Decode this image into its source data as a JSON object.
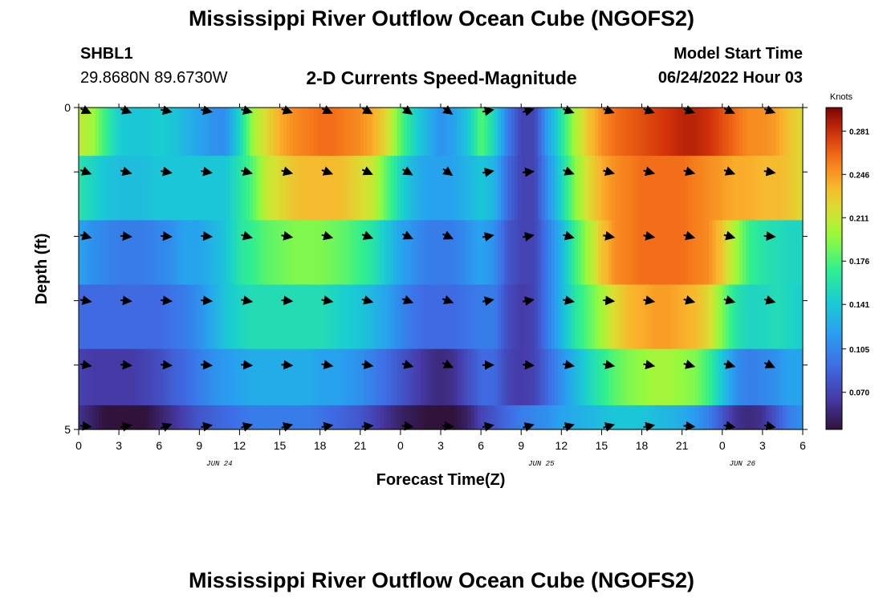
{
  "header": {
    "title": "Mississippi River Outflow Ocean Cube (NGOFS2)",
    "station_id": "SHBL1",
    "station_coords": "29.8680N  89.6730W",
    "subtitle": "2-D Currents Speed-Magnitude",
    "start_label": "Model Start Time",
    "start_value": "06/24/2022 Hour 03"
  },
  "footer": {
    "title": "Mississippi River Outflow Ocean Cube (NGOFS2)"
  },
  "chart_data": {
    "type": "heatmap",
    "title": "2-D Currents Speed-Magnitude",
    "xlabel": "Forecast Time(Z)",
    "ylabel": "Depth (ft)",
    "xlim": [
      0,
      54
    ],
    "ylim": [
      5,
      0
    ],
    "x_ticks": [
      0,
      3,
      6,
      9,
      12,
      15,
      18,
      21,
      24,
      27,
      30,
      33,
      36,
      39,
      42,
      45,
      48,
      51,
      54
    ],
    "x_tick_labels": [
      "0",
      "3",
      "6",
      "9",
      "12",
      "15",
      "18",
      "21",
      "0",
      "3",
      "6",
      "9",
      "12",
      "15",
      "18",
      "21",
      "0",
      "3",
      "6"
    ],
    "y_tick_labels": [
      {
        "value": 0,
        "label": "0"
      },
      {
        "value": 5,
        "label": "5"
      }
    ],
    "date_labels": [
      {
        "x": 10.5,
        "label": "JUN 24"
      },
      {
        "x": 34.5,
        "label": "JUN 25"
      },
      {
        "x": 49.5,
        "label": "JUN 26"
      }
    ],
    "colorbar": {
      "unit": "Knots",
      "range": [
        0.04,
        0.3
      ],
      "tick_values": [
        0.07,
        0.105,
        0.141,
        0.176,
        0.211,
        0.246,
        0.281
      ],
      "tick_labels": [
        "0.070",
        "0.105",
        "0.141",
        "0.176",
        "0.211",
        "0.246",
        "0.281"
      ],
      "colormap": "turbo"
    },
    "depth_layers": [
      0.25,
      1.25,
      2.25,
      3.25,
      4.25,
      5.0
    ],
    "speed_time_anchors": [
      0,
      1,
      2,
      3,
      4,
      5,
      6,
      7,
      8,
      9,
      10,
      11,
      12,
      13,
      14,
      15,
      16,
      17,
      18,
      19,
      20,
      21,
      22,
      23,
      24,
      25,
      26,
      27,
      28,
      29,
      30,
      31,
      32,
      33,
      34,
      35,
      36,
      37,
      38,
      39,
      40,
      41,
      42,
      43,
      44,
      45,
      46,
      47,
      48,
      49,
      50,
      51,
      52,
      53,
      54
    ],
    "speed_knots": [
      [
        0.21,
        0.2,
        0.17,
        0.145,
        0.14,
        0.14,
        0.145,
        0.14,
        0.13,
        0.12,
        0.11,
        0.11,
        0.15,
        0.2,
        0.22,
        0.24,
        0.25,
        0.255,
        0.26,
        0.26,
        0.255,
        0.25,
        0.24,
        0.22,
        0.18,
        0.15,
        0.13,
        0.11,
        0.12,
        0.14,
        0.18,
        0.15,
        0.1,
        0.07,
        0.07,
        0.12,
        0.16,
        0.2,
        0.23,
        0.25,
        0.26,
        0.265,
        0.27,
        0.275,
        0.28,
        0.285,
        0.285,
        0.28,
        0.27,
        0.26,
        0.25,
        0.25,
        0.245,
        0.23,
        0.22
      ],
      [
        0.16,
        0.15,
        0.14,
        0.135,
        0.135,
        0.135,
        0.14,
        0.14,
        0.14,
        0.14,
        0.14,
        0.14,
        0.16,
        0.18,
        0.21,
        0.22,
        0.23,
        0.235,
        0.235,
        0.235,
        0.23,
        0.22,
        0.21,
        0.18,
        0.15,
        0.13,
        0.12,
        0.12,
        0.12,
        0.13,
        0.14,
        0.13,
        0.09,
        0.07,
        0.07,
        0.11,
        0.15,
        0.19,
        0.22,
        0.24,
        0.25,
        0.255,
        0.26,
        0.26,
        0.26,
        0.26,
        0.255,
        0.25,
        0.245,
        0.24,
        0.24,
        0.235,
        0.235,
        0.23,
        0.22
      ],
      [
        0.12,
        0.11,
        0.105,
        0.1,
        0.1,
        0.1,
        0.105,
        0.11,
        0.12,
        0.12,
        0.13,
        0.14,
        0.16,
        0.17,
        0.18,
        0.185,
        0.19,
        0.19,
        0.19,
        0.185,
        0.18,
        0.17,
        0.16,
        0.14,
        0.12,
        0.11,
        0.1,
        0.1,
        0.1,
        0.11,
        0.12,
        0.11,
        0.08,
        0.07,
        0.07,
        0.1,
        0.13,
        0.17,
        0.2,
        0.23,
        0.25,
        0.255,
        0.26,
        0.26,
        0.26,
        0.26,
        0.255,
        0.25,
        0.23,
        0.2,
        0.17,
        0.16,
        0.155,
        0.15,
        0.15
      ],
      [
        0.09,
        0.09,
        0.09,
        0.09,
        0.09,
        0.09,
        0.09,
        0.095,
        0.1,
        0.11,
        0.125,
        0.14,
        0.15,
        0.155,
        0.155,
        0.155,
        0.155,
        0.155,
        0.155,
        0.15,
        0.145,
        0.14,
        0.13,
        0.12,
        0.105,
        0.095,
        0.09,
        0.09,
        0.09,
        0.095,
        0.1,
        0.1,
        0.075,
        0.065,
        0.07,
        0.1,
        0.13,
        0.16,
        0.18,
        0.2,
        0.22,
        0.235,
        0.24,
        0.245,
        0.245,
        0.24,
        0.235,
        0.22,
        0.19,
        0.16,
        0.15,
        0.15,
        0.155,
        0.15,
        0.145
      ],
      [
        0.07,
        0.065,
        0.065,
        0.065,
        0.065,
        0.07,
        0.075,
        0.085,
        0.09,
        0.1,
        0.11,
        0.115,
        0.12,
        0.125,
        0.125,
        0.125,
        0.125,
        0.125,
        0.12,
        0.12,
        0.115,
        0.11,
        0.1,
        0.09,
        0.08,
        0.07,
        0.06,
        0.055,
        0.06,
        0.075,
        0.09,
        0.09,
        0.07,
        0.065,
        0.07,
        0.09,
        0.11,
        0.13,
        0.15,
        0.165,
        0.18,
        0.19,
        0.195,
        0.2,
        0.2,
        0.195,
        0.19,
        0.17,
        0.14,
        0.11,
        0.1,
        0.105,
        0.11,
        0.12,
        0.12
      ],
      [
        0.06,
        0.05,
        0.04,
        0.035,
        0.035,
        0.04,
        0.05,
        0.06,
        0.07,
        0.08,
        0.085,
        0.09,
        0.095,
        0.1,
        0.1,
        0.1,
        0.1,
        0.1,
        0.095,
        0.09,
        0.085,
        0.08,
        0.07,
        0.06,
        0.05,
        0.045,
        0.04,
        0.035,
        0.04,
        0.05,
        0.07,
        0.08,
        0.09,
        0.1,
        0.105,
        0.11,
        0.12,
        0.125,
        0.13,
        0.135,
        0.14,
        0.14,
        0.14,
        0.135,
        0.13,
        0.125,
        0.115,
        0.1,
        0.08,
        0.06,
        0.055,
        0.06,
        0.08,
        0.1,
        0.11
      ]
    ],
    "vector_times": [
      0.5,
      3.5,
      6.5,
      9.5,
      12.5,
      15.5,
      18.5,
      21.5,
      24.5,
      27.5,
      30.5,
      33.5,
      36.5,
      39.5,
      42.5,
      45.5,
      48.5,
      51.5
    ],
    "vector_depths": [
      0,
      1,
      2,
      3,
      4,
      5
    ],
    "vector_direction_deg": [
      [
        -25,
        -20,
        -12,
        -12,
        -15,
        -20,
        -25,
        -30,
        -35,
        -35,
        10,
        15,
        -20,
        -20,
        -20,
        -20,
        -25,
        -20
      ],
      [
        -20,
        -15,
        -10,
        -10,
        -15,
        -15,
        -20,
        -25,
        -30,
        -35,
        10,
        5,
        -20,
        -15,
        -15,
        -15,
        -20,
        -10
      ],
      [
        -15,
        -5,
        -5,
        -5,
        -15,
        -10,
        -15,
        -20,
        -25,
        -25,
        10,
        10,
        -15,
        -10,
        -10,
        -15,
        -15,
        -5
      ],
      [
        -10,
        -5,
        -5,
        -5,
        -10,
        -5,
        -10,
        -15,
        -20,
        -20,
        10,
        10,
        -10,
        -5,
        -10,
        -15,
        -15,
        -15
      ],
      [
        -10,
        -5,
        -5,
        -5,
        -5,
        -5,
        -10,
        -10,
        -15,
        -25,
        0,
        -5,
        -10,
        -10,
        -10,
        -15,
        -15,
        -25
      ],
      [
        -5,
        10,
        20,
        10,
        15,
        15,
        10,
        5,
        -5,
        -5,
        10,
        15,
        15,
        15,
        10,
        -5,
        -10,
        -10
      ]
    ]
  }
}
